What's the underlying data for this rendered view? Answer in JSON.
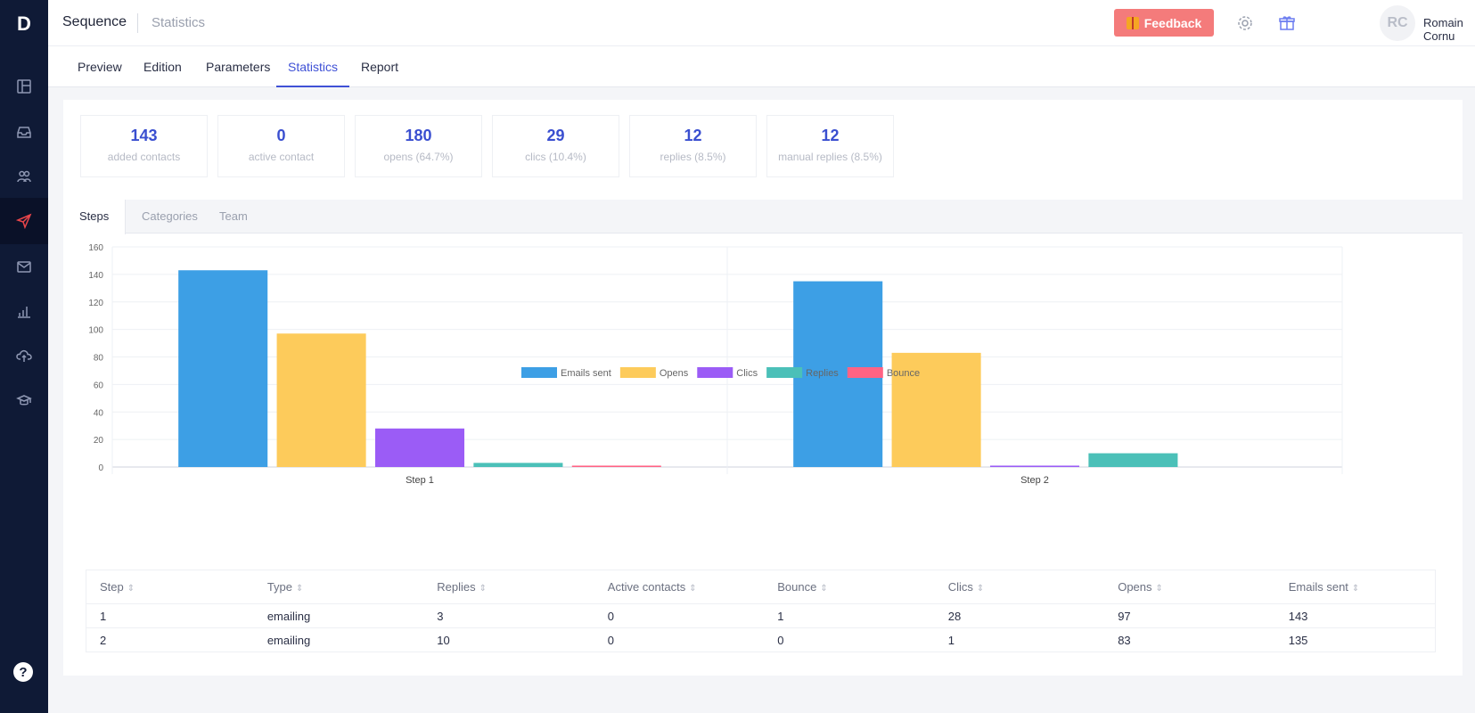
{
  "app": {
    "logo": "D"
  },
  "sidebar": {
    "items": [
      {
        "icon": "layout-icon",
        "active": false
      },
      {
        "icon": "inbox-icon",
        "active": false
      },
      {
        "icon": "contacts-icon",
        "active": false
      },
      {
        "icon": "send-icon",
        "active": true
      },
      {
        "icon": "mail-icon",
        "active": false
      },
      {
        "icon": "bar-chart-icon",
        "active": false
      },
      {
        "icon": "cloud-upload-icon",
        "active": false
      },
      {
        "icon": "graduation-icon",
        "active": false
      }
    ],
    "help_label": "?"
  },
  "header": {
    "app_name": "Sequence",
    "page_name": "Statistics",
    "feedback_label": "Feedback",
    "avatar_initials": "RC",
    "user_name": "Romain Cornu"
  },
  "nav": {
    "tabs": [
      {
        "label": "Preview"
      },
      {
        "label": "Edition"
      },
      {
        "label": "Parameters"
      },
      {
        "label": "Statistics"
      },
      {
        "label": "Report"
      }
    ]
  },
  "stats": [
    {
      "value": "143",
      "label": "added contacts"
    },
    {
      "value": "0",
      "label": "active contact"
    },
    {
      "value": "180",
      "label": "opens (64.7%)"
    },
    {
      "value": "29",
      "label": "clics (10.4%)"
    },
    {
      "value": "12",
      "label": "replies (8.5%)"
    },
    {
      "value": "12",
      "label": "manual replies (8.5%)"
    }
  ],
  "subtabs": [
    {
      "label": "Steps"
    },
    {
      "label": "Categories"
    },
    {
      "label": "Team"
    }
  ],
  "colors": {
    "accent": "#3f51d6",
    "sidebar_bg": "#0f1a36",
    "feedback": "#f47b7b"
  },
  "chart_data": {
    "type": "bar",
    "categories": [
      "Step 1",
      "Step 2"
    ],
    "ylim": [
      0,
      160
    ],
    "yticks": [
      0,
      20,
      40,
      60,
      80,
      100,
      120,
      140,
      160
    ],
    "grid": true,
    "legend_position": "bottom",
    "series": [
      {
        "name": "Emails sent",
        "color": "#3d9fe5",
        "values": [
          143,
          135
        ]
      },
      {
        "name": "Opens",
        "color": "#fdcb5b",
        "values": [
          97,
          83
        ]
      },
      {
        "name": "Clics",
        "color": "#9b5cf6",
        "values": [
          28,
          1
        ]
      },
      {
        "name": "Replies",
        "color": "#4bc0b8",
        "values": [
          3,
          10
        ]
      },
      {
        "name": "Bounce",
        "color": "#ff6384",
        "values": [
          1,
          0
        ]
      }
    ]
  },
  "table": {
    "columns": [
      "Step",
      "Type",
      "Replies",
      "Active contacts",
      "Bounce",
      "Clics",
      "Opens",
      "Emails sent"
    ],
    "sort_glyph": "⇕",
    "rows": [
      [
        "1",
        "emailing",
        "3",
        "0",
        "1",
        "28",
        "97",
        "143"
      ],
      [
        "2",
        "emailing",
        "10",
        "0",
        "0",
        "1",
        "83",
        "135"
      ]
    ]
  }
}
